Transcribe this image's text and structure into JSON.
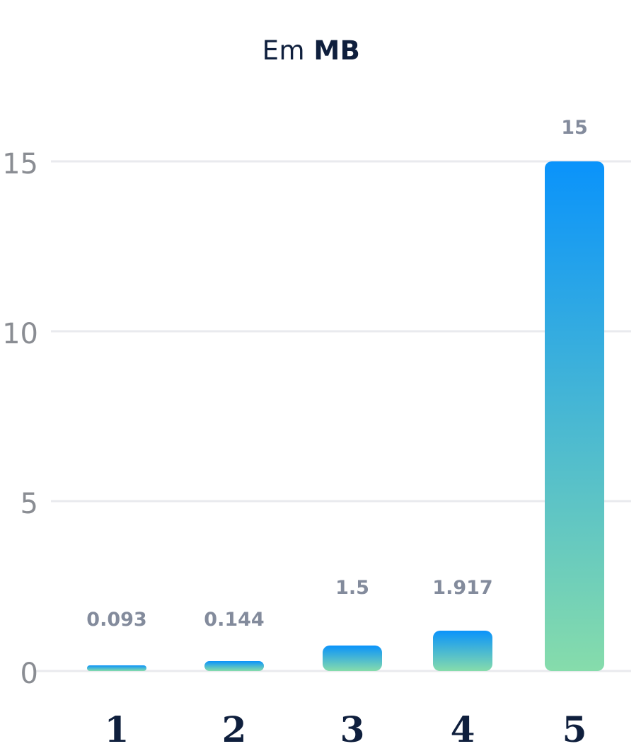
{
  "chart_data": {
    "type": "bar",
    "title_prefix": "Em",
    "title_unit": "MB",
    "xlabel": "",
    "ylabel": "",
    "categories": [
      "1",
      "2",
      "3",
      "4",
      "5"
    ],
    "values": [
      0.093,
      0.144,
      1.5,
      1.917,
      15
    ],
    "data_labels": [
      "0.093",
      "0.144",
      "1.5",
      "1.917",
      "15"
    ],
    "y_ticks": [
      "0",
      "5",
      "10",
      "15"
    ],
    "ylim": [
      0,
      15
    ],
    "grid": true,
    "legend": "none",
    "colors": {
      "bar_top": "#0a93fb",
      "bar_bottom": "#86dcab",
      "grid": "#e9eaee",
      "title": "#0f1f3d",
      "data_label": "#838b9c",
      "y_tick": "#8a8d93"
    }
  }
}
